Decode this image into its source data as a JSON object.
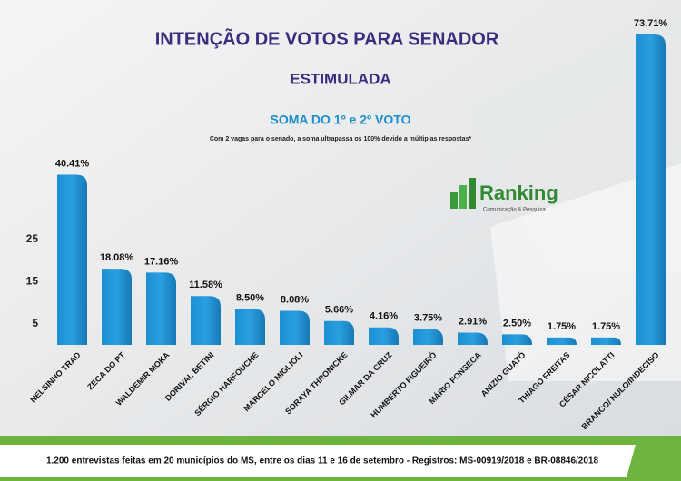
{
  "chart_data": {
    "type": "bar",
    "title": "INTENÇÃO DE VOTOS PARA SENADOR",
    "subtitle": "ESTIMULADA",
    "annotations": [
      "SOMA DO 1º e 2º VOTO",
      "Com 2 vagas para o senado, a soma ultrapassa os 100% devido a múltiplas respostas*",
      "Ranking",
      "Comunicação & Pesquisa",
      "1.200 entrevistas feitas em 20 municípios do MS, entre os dias 11 e 16 de setembro - Registros:  MS-00919/2018 e BR-08846/2018"
    ],
    "categories": [
      "NELSINHO TRAD",
      "ZECA DO PT",
      "WALDEMIR MOKA",
      "DORIVAL BETINI",
      "SÉRGIO HARFOUCHE",
      "MARCELO MIGLIOLI",
      "SORAYA THRONICKE",
      "GILMAR DA CRUZ",
      "HUMBERTO FIGUEIRÓ",
      "MÁRIO FONSECA",
      "ANÍZIO GUATÓ",
      "THIAGO FREITAS",
      "CÉSAR NICOLATTI",
      "BRANCO/ NULO/INDECISO"
    ],
    "values": [
      40.41,
      18.08,
      17.16,
      11.58,
      8.5,
      8.08,
      5.66,
      4.16,
      3.75,
      2.91,
      2.5,
      1.75,
      1.75,
      73.71
    ],
    "value_labels": [
      "40.41%",
      "18.08%",
      "17.16%",
      "11.58%",
      "8.50%",
      "8.08%",
      "5.66%",
      "4.16%",
      "3.75%",
      "2.91%",
      "2.50%",
      "1.75%",
      "1.75%",
      "73.71%"
    ],
    "color": "#1b8fd2",
    "ylim": [
      0,
      75
    ],
    "yticks": [
      5,
      15,
      25
    ],
    "grid": false
  }
}
